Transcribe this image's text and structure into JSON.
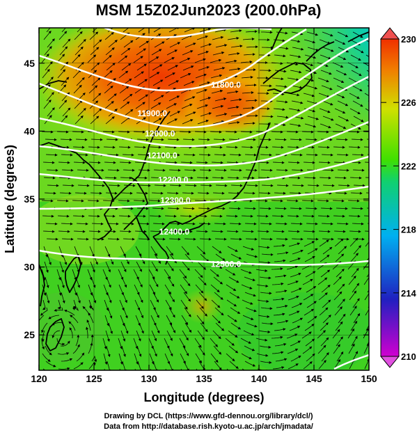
{
  "title": "MSM 15Z02Jun2023 (200.0hPa)",
  "x_axis": {
    "label": "Longitude (degrees)",
    "ticks": [
      120,
      125,
      130,
      135,
      140,
      145,
      150
    ],
    "range": [
      120,
      150
    ]
  },
  "y_axis": {
    "label": "Latitude  (degrees)",
    "ticks": [
      25,
      30,
      35,
      40,
      45
    ],
    "range": [
      22.4,
      47.6
    ]
  },
  "colorbar": {
    "labels": [
      "230",
      "226",
      "222",
      "218",
      "214",
      "210"
    ],
    "range": [
      210,
      230
    ],
    "stops": [
      "#d000d0",
      "#2020c0",
      "#00b0f0",
      "#10d070",
      "#40e000",
      "#d0e000",
      "#f08000",
      "#f03000"
    ]
  },
  "contours": [
    {
      "label": "11800.0",
      "lon": 137.0,
      "lat": 43.2
    },
    {
      "label": "11900.0",
      "lon": 130.3,
      "lat": 41.1
    },
    {
      "label": "12000.0",
      "lon": 131.0,
      "lat": 39.6
    },
    {
      "label": "12100.0",
      "lon": 131.2,
      "lat": 38.0
    },
    {
      "label": "12200.0",
      "lon": 132.2,
      "lat": 36.2
    },
    {
      "label": "12300.0",
      "lon": 132.4,
      "lat": 34.7
    },
    {
      "label": "12400.0",
      "lon": 132.3,
      "lat": 32.4
    },
    {
      "label": "12500.0",
      "lon": 137.0,
      "lat": 30.0
    }
  ],
  "credits": [
    "Drawing by DCL (https://www.gfd-dennou.org/library/dcl/)",
    "Data from http://database.rish.kyoto-u.ac.jp/arch/jmadata/"
  ]
}
